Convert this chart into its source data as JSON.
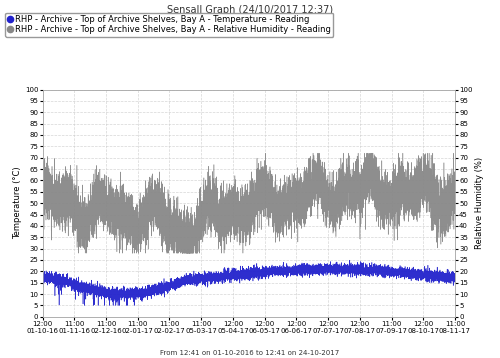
{
  "title": "SensaII Graph (24/10/2017 12:37)",
  "legend1": "RHP - Archive - Top of Archive Shelves, Bay A - Temperature - Reading",
  "legend2": "RHP - Archive - Top of Archive Shelves, Bay A - Relative Humidity - Reading",
  "xlabel": "From 12:41 on 01-10-2016 to 12:41 on 24-10-2017",
  "ylabel_left": "Temperature (°C)",
  "ylabel_right": "Relative Humidity (%)",
  "ylim": [
    0.0,
    100.0
  ],
  "yticks": [
    0.0,
    5.0,
    10.0,
    15.0,
    20.0,
    25.0,
    30.0,
    35.0,
    40.0,
    45.0,
    50.0,
    55.0,
    60.0,
    65.0,
    70.0,
    75.0,
    80.0,
    85.0,
    90.0,
    95.0,
    100.0
  ],
  "xtick_labels": [
    "12:00\n01-10-16",
    "11:00\n01-11-16",
    "11:00\n02-12-16",
    "11:00\n02-01-17",
    "11:00\n02-02-17",
    "11:00\n05-03-17",
    "12:00\n05-04-17",
    "12:00\n06-05-17",
    "12:00\n06-06-17",
    "12:00\n07-07-17",
    "12:00\n07-08-17",
    "11:00\n07-09-17",
    "12:00\n08-10-17",
    "11:00\n08-11-17"
  ],
  "temp_color": "#2222cc",
  "rh_color": "#888888",
  "bg_color": "#ffffff",
  "grid_color": "#cccccc",
  "title_fontsize": 7,
  "legend_fontsize": 6,
  "axis_fontsize": 6,
  "tick_fontsize": 5
}
